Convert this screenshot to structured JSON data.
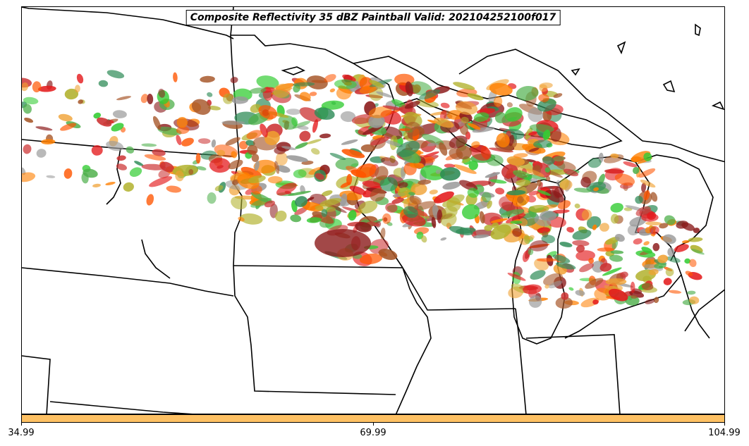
{
  "title": "Composite Reflectivity 35 dBZ Paintball Valid: 202104252100f017",
  "colorbar": {
    "color": "#fec164",
    "ticks": [
      "34.99",
      "69.99",
      "104.99"
    ]
  },
  "colors": {
    "coastline": "#000000",
    "paintball": [
      "#e41a1c",
      "#ff7f00",
      "#4daf4a",
      "#a65628",
      "#999999",
      "#b2b22e",
      "#33cc33",
      "#f0a030",
      "#8b1a1a",
      "#2e8b57",
      "#ff5500",
      "#cc3333"
    ]
  }
}
